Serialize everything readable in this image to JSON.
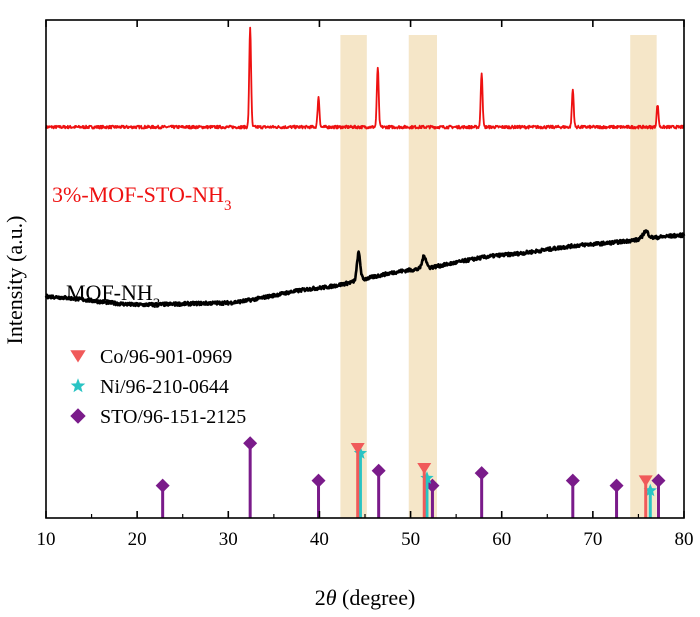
{
  "chart_data": {
    "type": "line",
    "title": "",
    "xlabel_prefix": "2",
    "xlabel_symbol": "θ",
    "xlabel_suffix": " (degree)",
    "ylabel": "Intensity (a.u.)",
    "xlim": [
      10,
      80
    ],
    "ylim": [
      0,
      100
    ],
    "x_ticks": [
      10,
      20,
      30,
      40,
      50,
      60,
      70,
      80
    ],
    "y_ticks_shown": false,
    "grid": false,
    "highlight_bands": [
      {
        "from": 42.3,
        "to": 45.2
      },
      {
        "from": 49.8,
        "to": 52.9
      },
      {
        "from": 74.1,
        "to": 77.0
      }
    ],
    "highlight_color": "#f5e6c8",
    "series": [
      {
        "name": "3%-MOF-STO-NH",
        "name_sub": "3",
        "color": "#ee1111",
        "baseline": 78.5,
        "noise": 0.3,
        "peaks": [
          {
            "x": 32.4,
            "h": 20,
            "w": 0.1
          },
          {
            "x": 39.9,
            "h": 6,
            "w": 0.1
          },
          {
            "x": 46.4,
            "h": 12,
            "w": 0.1
          },
          {
            "x": 57.8,
            "h": 11,
            "w": 0.1
          },
          {
            "x": 67.8,
            "h": 7.5,
            "w": 0.1
          },
          {
            "x": 77.1,
            "h": 4.5,
            "w": 0.1
          }
        ]
      },
      {
        "name": "MOF-NH",
        "name_sub": "3",
        "color": "#000000",
        "baseline_points": [
          [
            10,
            44.5
          ],
          [
            20,
            42.8
          ],
          [
            30,
            43.2
          ],
          [
            40,
            46.2
          ],
          [
            50,
            49.8
          ],
          [
            60,
            52.8
          ],
          [
            70,
            55.0
          ],
          [
            80,
            56.8
          ]
        ],
        "noise": 0.35,
        "peaks": [
          {
            "x": 44.3,
            "h": 5.5,
            "w": 0.18
          },
          {
            "x": 51.5,
            "h": 2.5,
            "w": 0.22
          },
          {
            "x": 75.8,
            "h": 1.5,
            "w": 0.3
          }
        ]
      }
    ],
    "reference_patterns": [
      {
        "name": "Co/96-901-0969",
        "marker": "triangle-down",
        "color": "#f05a5a",
        "peaks": [
          {
            "x": 44.2,
            "h": 14
          },
          {
            "x": 51.5,
            "h": 10
          },
          {
            "x": 75.8,
            "h": 7.5
          }
        ]
      },
      {
        "name": "Ni/96-210-0644",
        "marker": "star",
        "color": "#29c4c4",
        "peaks": [
          {
            "x": 44.5,
            "h": 13
          },
          {
            "x": 51.8,
            "h": 8
          },
          {
            "x": 76.3,
            "h": 5.5
          }
        ]
      },
      {
        "name": "STO/96-151-2125",
        "marker": "diamond",
        "color": "#7a1b8a",
        "peaks": [
          {
            "x": 22.8,
            "h": 6.5
          },
          {
            "x": 32.4,
            "h": 15
          },
          {
            "x": 39.9,
            "h": 7.5
          },
          {
            "x": 46.5,
            "h": 9.5
          },
          {
            "x": 52.4,
            "h": 6.5
          },
          {
            "x": 57.8,
            "h": 9
          },
          {
            "x": 67.8,
            "h": 7.5
          },
          {
            "x": 72.6,
            "h": 6.5
          },
          {
            "x": 77.2,
            "h": 7.5
          }
        ]
      }
    ]
  }
}
